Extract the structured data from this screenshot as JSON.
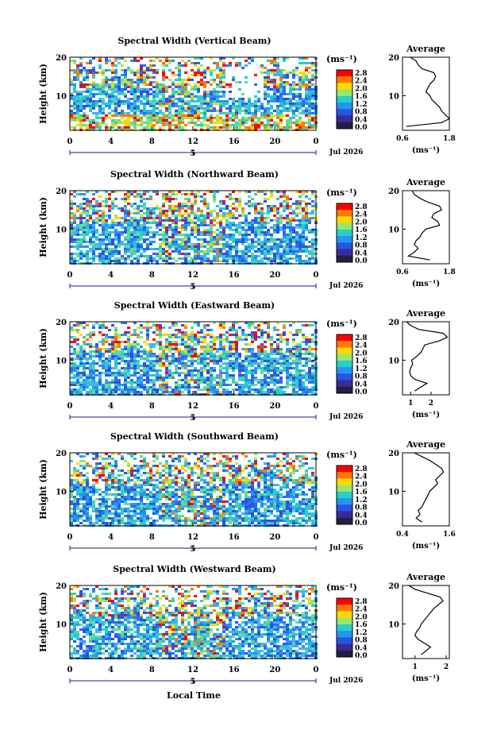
{
  "figure": {
    "xlabel_bottom": "Local Time",
    "date_label": "Jul 2026",
    "date_marker": "5",
    "unit_label": "(ms⁻¹)",
    "avg_title": "Average",
    "avg_xlabel": "(ms⁻¹)",
    "ylabel": "Height (km)",
    "colorbar_ticks": [
      "2.8",
      "2.4",
      "2.0",
      "1.6",
      "1.2",
      "0.8",
      "0.4",
      "0.0"
    ],
    "colorbar_colors": [
      "#ff0000",
      "#ff7a00",
      "#ffd800",
      "#9be66a",
      "#27d0c8",
      "#2196f3",
      "#2a53e0",
      "#3a2a9a",
      "#202040"
    ]
  },
  "chart_data": [
    {
      "type": "heatmap",
      "title": "Spectral Width (Vertical Beam)",
      "x_ticks": [
        "0",
        "4",
        "8",
        "12",
        "16",
        "20",
        "0"
      ],
      "y_ticks": [
        "20",
        "10"
      ],
      "ylim": [
        1,
        20
      ],
      "xlim": [
        0,
        24
      ],
      "profile": {
        "x_ticks": [
          "0.6",
          "1.8"
        ],
        "xlim": [
          0.6,
          1.8
        ],
        "heights": [
          2,
          3,
          4,
          5,
          6,
          7,
          8,
          9,
          10,
          11,
          12,
          13,
          14,
          15,
          16,
          17,
          18,
          19,
          20
        ],
        "values": [
          0.7,
          1.6,
          1.8,
          1.7,
          1.6,
          1.55,
          1.45,
          1.35,
          1.3,
          1.2,
          1.25,
          1.3,
          1.4,
          1.45,
          1.4,
          1.1,
          1.0,
          0.95,
          0.8
        ]
      }
    },
    {
      "type": "heatmap",
      "title": "Spectral Width (Northward Beam)",
      "x_ticks": [
        "0",
        "4",
        "8",
        "12",
        "16",
        "20",
        "0"
      ],
      "y_ticks": [
        "20",
        "10"
      ],
      "ylim": [
        1,
        20
      ],
      "xlim": [
        0,
        24
      ],
      "profile": {
        "x_ticks": [
          "0.6",
          "1.8"
        ],
        "xlim": [
          0.6,
          1.8
        ],
        "heights": [
          2,
          3,
          4,
          5,
          6,
          7,
          8,
          9,
          10,
          11,
          12,
          13,
          14,
          15,
          16,
          17,
          18,
          19,
          20
        ],
        "values": [
          1.3,
          0.75,
          0.9,
          1.0,
          0.9,
          0.95,
          1.05,
          1.1,
          1.2,
          1.55,
          1.5,
          1.35,
          1.4,
          1.6,
          1.55,
          1.25,
          1.05,
          0.9,
          0.85
        ]
      }
    },
    {
      "type": "heatmap",
      "title": "Spectral Width (Eastward Beam)",
      "x_ticks": [
        "0",
        "4",
        "8",
        "12",
        "16",
        "20",
        "0"
      ],
      "y_ticks": [
        "20",
        "10"
      ],
      "ylim": [
        1,
        20
      ],
      "xlim": [
        0,
        24
      ],
      "profile": {
        "x_ticks": [
          "1",
          "2"
        ],
        "xlim": [
          0.6,
          2.9
        ],
        "heights": [
          2,
          3,
          4,
          5,
          6,
          7,
          8,
          9,
          10,
          11,
          12,
          13,
          14,
          15,
          16,
          17,
          18,
          19,
          20
        ],
        "values": [
          1.2,
          1.5,
          1.8,
          1.2,
          1.0,
          0.95,
          1.0,
          1.1,
          1.05,
          1.3,
          1.5,
          1.6,
          1.7,
          2.4,
          2.8,
          2.6,
          1.4,
          1.0,
          0.8
        ]
      }
    },
    {
      "type": "heatmap",
      "title": "Spectral Width (Southward Beam)",
      "x_ticks": [
        "0",
        "4",
        "8",
        "12",
        "16",
        "20",
        "0"
      ],
      "y_ticks": [
        "20",
        "10"
      ],
      "ylim": [
        1,
        20
      ],
      "xlim": [
        0,
        24
      ],
      "profile": {
        "x_ticks": [
          "0.4",
          "1.6"
        ],
        "xlim": [
          0.4,
          1.6
        ],
        "heights": [
          2,
          3,
          4,
          5,
          6,
          7,
          8,
          9,
          10,
          11,
          12,
          13,
          14,
          15,
          16,
          17,
          18,
          19,
          20
        ],
        "values": [
          0.9,
          0.75,
          0.85,
          0.8,
          0.9,
          0.95,
          1.0,
          1.05,
          1.1,
          1.2,
          1.3,
          1.25,
          1.35,
          1.45,
          1.4,
          1.25,
          1.1,
          0.9,
          0.7
        ]
      }
    },
    {
      "type": "heatmap",
      "title": "Spectral Width (Westward Beam)",
      "x_ticks": [
        "0",
        "4",
        "8",
        "12",
        "16",
        "20",
        "0"
      ],
      "y_ticks": [
        "20",
        "10"
      ],
      "ylim": [
        1,
        20
      ],
      "xlim": [
        0,
        24
      ],
      "profile": {
        "x_ticks": [
          "1",
          "2"
        ],
        "xlim": [
          0.6,
          2.1
        ],
        "heights": [
          2,
          3,
          4,
          5,
          6,
          7,
          8,
          9,
          10,
          11,
          12,
          13,
          14,
          15,
          16,
          17,
          18,
          19,
          20
        ],
        "values": [
          1.2,
          1.35,
          1.5,
          1.3,
          1.1,
          1.0,
          1.05,
          1.15,
          1.2,
          1.3,
          1.4,
          1.5,
          1.6,
          1.75,
          1.9,
          1.8,
          1.4,
          1.0,
          0.8
        ]
      }
    }
  ]
}
